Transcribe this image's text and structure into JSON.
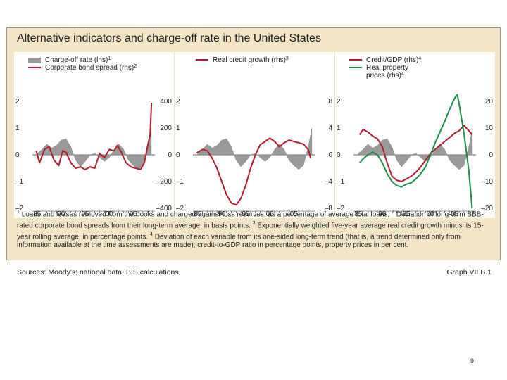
{
  "graph": {
    "title": "Alternative indicators and charge-off rate in the United States",
    "footnote_text": "Loans and leases removed from the books and charged against loss reserves, as a percentage of average total loans.",
    "footnote2_text": "Deviation of long-term BBB-rated corporate bond spreads from their long-term average, in basis points.",
    "footnote3_text": "Exponentially weighted five-year average real credit growth minus its 15-year rolling average, in percentage points.",
    "footnote4_text": "Deviation of each variable from its one-sided long-term trend (that is, a trend determined only from information available at the time assessments are made); credit-to-GDP ratio in percentage points, property prices in per cent.",
    "sources": "Sources: Moody's; national data; BIS calculations.",
    "graph_id": "Graph VII.B.1",
    "page_number": "9",
    "footnote_marks": [
      "1",
      "2",
      "3",
      "4"
    ]
  },
  "colors": {
    "bar": "#9a9a9a",
    "red": "#b01e2a",
    "green": "#1e8c4a",
    "axis": "#333333"
  },
  "chart_data": [
    {
      "type": "bar+line",
      "panel": 1,
      "legend": [
        {
          "label": "Charge-off rate (lhs)",
          "sup": "1",
          "kind": "bar"
        },
        {
          "label": "Corporate bond spread (rhs)",
          "sup": "2",
          "kind": "line"
        }
      ],
      "x_ticks": [
        "85",
        "90",
        "95",
        "00",
        "05"
      ],
      "xlim": [
        1984,
        2009.5
      ],
      "lhs_ticks": [
        "2",
        "1",
        "0",
        "–1",
        "–2"
      ],
      "rhs_ticks": [
        "400",
        "200",
        "0",
        "–200",
        "–400"
      ],
      "lhs_lim": [
        -2,
        2
      ],
      "rhs_lim": [
        -400,
        400
      ],
      "charge_off": {
        "x": [
          1985,
          1986,
          1987,
          1988,
          1989,
          1990,
          1991,
          1992,
          1993,
          1994,
          1995,
          1996,
          1997,
          1998,
          1999,
          2000,
          2001,
          2002,
          2003,
          2004,
          2005,
          2006,
          2007,
          2008,
          2008.75
        ],
        "y": [
          0.05,
          0.2,
          0.4,
          0.25,
          0.35,
          0.55,
          0.6,
          0.3,
          -0.2,
          -0.45,
          -0.25,
          0.0,
          0.05,
          -0.1,
          -0.25,
          -0.1,
          0.2,
          0.4,
          0.2,
          -0.2,
          -0.4,
          -0.55,
          -0.4,
          0.3,
          1.0
        ]
      },
      "spread": {
        "x": [
          1984.8,
          1985.5,
          1986.5,
          1987.5,
          1988.5,
          1989.5,
          1990.3,
          1991,
          1992,
          1993,
          1994,
          1995,
          1996,
          1997,
          1998,
          1999,
          2000,
          2001,
          2001.7,
          2002.5,
          2003.5,
          2004.5,
          2005.5,
          2006.5,
          2007.3,
          2008,
          2008.5,
          2008.8
        ],
        "y": [
          30,
          -60,
          40,
          60,
          -40,
          -80,
          30,
          20,
          -60,
          -100,
          -90,
          -110,
          -90,
          -100,
          10,
          -20,
          40,
          30,
          70,
          20,
          -60,
          -90,
          -100,
          -110,
          -60,
          70,
          150,
          390
        ]
      }
    },
    {
      "type": "line",
      "panel": 2,
      "legend": [
        {
          "label": "Real credit growth (rhs)",
          "sup": "3",
          "kind": "line"
        }
      ],
      "x_ticks": [
        "85",
        "90",
        "95",
        "00",
        "05"
      ],
      "xlim": [
        1984,
        2009.5
      ],
      "lhs_ticks": [
        "2",
        "1",
        "0",
        "–1",
        "–2"
      ],
      "rhs_ticks": [
        "8",
        "4",
        "0",
        "–4",
        "–8"
      ],
      "lhs_lim": [
        -2,
        2
      ],
      "rhs_lim": [
        -8,
        8
      ],
      "charge_off": {
        "x": [
          1985,
          1986,
          1987,
          1988,
          1989,
          1990,
          1991,
          1992,
          1993,
          1994,
          1995,
          1996,
          1997,
          1998,
          1999,
          2000,
          2001,
          2002,
          2003,
          2004,
          2005,
          2006,
          2007,
          2008,
          2008.75
        ],
        "y": [
          0.05,
          0.2,
          0.4,
          0.25,
          0.35,
          0.55,
          0.6,
          0.3,
          -0.2,
          -0.45,
          -0.25,
          0.0,
          0.05,
          -0.1,
          -0.25,
          -0.1,
          0.2,
          0.4,
          0.2,
          -0.2,
          -0.4,
          -0.55,
          -0.4,
          0.3,
          1.0
        ]
      },
      "credit_growth": {
        "x": [
          1984.8,
          1986,
          1987,
          1988,
          1989,
          1990,
          1991,
          1992,
          1993,
          1994,
          1995,
          1996,
          1997,
          1998,
          1999,
          2000,
          2001,
          2002,
          2003,
          2004,
          2005,
          2006,
          2007,
          2008,
          2008.5
        ],
        "y": [
          0.3,
          0.8,
          0.6,
          -0.5,
          -2.0,
          -4.0,
          -6.0,
          -7.2,
          -7.5,
          -6.5,
          -4.5,
          -2.0,
          0.0,
          1.5,
          2.0,
          2.5,
          2.0,
          1.2,
          1.8,
          2.2,
          2.0,
          1.8,
          1.6,
          0.8,
          -0.5
        ]
      }
    },
    {
      "type": "line",
      "panel": 3,
      "legend": [
        {
          "label": "Credit/GDP (rhs)",
          "sup": "4",
          "kind": "line",
          "series": "credit_gdp"
        },
        {
          "label": "Real property",
          "sup": "",
          "kind": "line",
          "series": "property"
        },
        {
          "label": "prices (rhs)",
          "sup": "4",
          "kind": "cont"
        }
      ],
      "x_ticks": [
        "85",
        "90",
        "95",
        "00",
        "05"
      ],
      "xlim": [
        1984,
        2009.5
      ],
      "lhs_ticks": [
        "2",
        "1",
        "0",
        "–1",
        "–2"
      ],
      "rhs_ticks": [
        "20",
        "10",
        "0",
        "–10",
        "–20"
      ],
      "lhs_lim": [
        -2,
        2
      ],
      "rhs_lim": [
        -20,
        20
      ],
      "charge_off": {
        "x": [
          1985,
          1986,
          1987,
          1988,
          1989,
          1990,
          1991,
          1992,
          1993,
          1994,
          1995,
          1996,
          1997,
          1998,
          1999,
          2000,
          2001,
          2002,
          2003,
          2004,
          2005,
          2006,
          2007,
          2008,
          2008.75
        ],
        "y": [
          0.05,
          0.2,
          0.4,
          0.25,
          0.35,
          0.55,
          0.6,
          0.3,
          -0.2,
          -0.45,
          -0.25,
          0.0,
          0.05,
          -0.1,
          -0.25,
          -0.1,
          0.2,
          0.4,
          0.2,
          -0.2,
          -0.4,
          -0.55,
          -0.4,
          0.3,
          1.0
        ]
      },
      "credit_gdp": {
        "x": [
          1985.3,
          1986,
          1987,
          1988,
          1989,
          1990,
          1991,
          1992,
          1993,
          1994,
          1995,
          1996,
          1997,
          1998,
          1999,
          2000,
          2001,
          2002,
          2003,
          2004,
          2005,
          2006,
          2007,
          2008,
          2008.7
        ],
        "y": [
          7.5,
          9.5,
          8.5,
          7.0,
          6.0,
          3.0,
          -3.0,
          -8.0,
          -9.5,
          -10.0,
          -9.0,
          -8.0,
          -6.5,
          -4.5,
          -2.0,
          0.5,
          2.0,
          3.5,
          5.0,
          6.5,
          8.0,
          9.0,
          11.0,
          9.0,
          7.5
        ]
      },
      "property": {
        "x": [
          1985.3,
          1986,
          1987,
          1988,
          1989,
          1990,
          1991,
          1992,
          1993,
          1994,
          1995,
          1996,
          1997,
          1998,
          1999,
          2000,
          2001,
          2002,
          2003,
          2004,
          2005,
          2005.6,
          2006,
          2007,
          2008,
          2008.7
        ],
        "y": [
          -3.0,
          -1.5,
          0.0,
          1.0,
          0.0,
          -3.0,
          -7.0,
          -10.0,
          -11.5,
          -12.0,
          -11.0,
          -10.5,
          -9.0,
          -7.0,
          -4.5,
          0.0,
          4.5,
          8.5,
          12.5,
          17.0,
          21.0,
          22.5,
          19.0,
          8.0,
          -6.0,
          -20.0
        ]
      }
    }
  ]
}
